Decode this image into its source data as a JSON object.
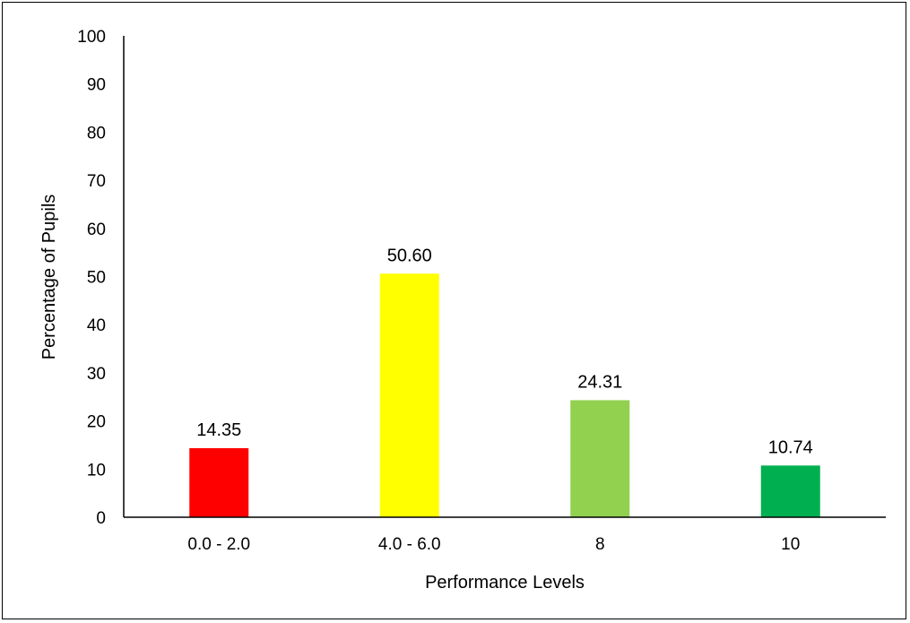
{
  "chart_data": {
    "type": "bar",
    "title": "",
    "xlabel": "Performance Levels",
    "ylabel": "Percentage of Pupils",
    "categories": [
      "0.0 - 2.0",
      "4.0 - 6.0",
      "8",
      "10"
    ],
    "values": [
      14.35,
      50.6,
      24.31,
      10.74
    ],
    "value_labels": [
      "14.35",
      "50.60",
      "24.31",
      "10.74"
    ],
    "bar_colors": [
      "#ff0000",
      "#ffff00",
      "#92d050",
      "#00b050"
    ],
    "ylim": [
      0,
      100
    ],
    "yticks": [
      0,
      10,
      20,
      30,
      40,
      50,
      60,
      70,
      80,
      90,
      100
    ],
    "grid": false,
    "legend": "none"
  }
}
